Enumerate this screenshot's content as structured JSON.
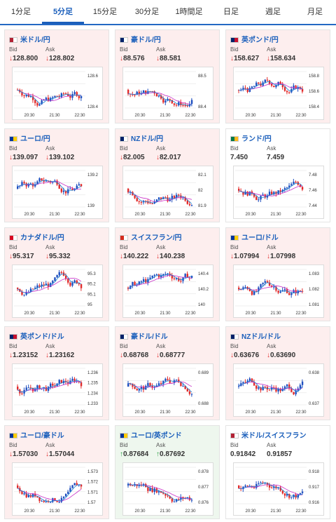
{
  "tabs": [
    "1分足",
    "5分足",
    "15分足",
    "30分足",
    "1時間足",
    "日足",
    "週足",
    "月足"
  ],
  "active_tab": 1,
  "labels": {
    "bid": "Bid",
    "ask": "Ask"
  },
  "colors": {
    "up": "#2aa043",
    "down": "#e22b2b",
    "neutral": "#333333",
    "card_down": "#fdeeee",
    "card_up": "#eef7ee",
    "card_neutral": "#ffffff",
    "ma": "#c830c8",
    "ma2": "#1a7fd0"
  },
  "pairs": [
    {
      "name": "米ドル/円",
      "bid": "128.800",
      "ask": "128.802",
      "dir": "down",
      "ticks": [
        "128.6",
        "128.4"
      ],
      "times": [
        "20:30",
        "21:30",
        "22:30"
      ]
    },
    {
      "name": "豪ドル/円",
      "bid": "88.576",
      "ask": "88.581",
      "dir": "down",
      "ticks": [
        "88.5",
        "88.4"
      ],
      "times": [
        "20:30",
        "21:30",
        "22:30"
      ]
    },
    {
      "name": "英ポンド/円",
      "bid": "158.627",
      "ask": "158.634",
      "dir": "down",
      "ticks": [
        "158.8",
        "158.6",
        "158.4"
      ],
      "times": [
        "20:30",
        "21:30",
        "22:30"
      ]
    },
    {
      "name": "ユーロ/円",
      "bid": "139.097",
      "ask": "139.102",
      "dir": "down",
      "ticks": [
        "139.2",
        "139"
      ],
      "times": [
        "20:30",
        "21:30",
        "22:30"
      ]
    },
    {
      "name": "NZドル/円",
      "bid": "82.005",
      "ask": "82.017",
      "dir": "down",
      "ticks": [
        "82.1",
        "82",
        "81.9"
      ],
      "times": [
        "20:30",
        "21:30",
        "22:30"
      ]
    },
    {
      "name": "ランド/円",
      "bid": "7.450",
      "ask": "7.459",
      "dir": "neutral",
      "ticks": [
        "7.48",
        "7.46",
        "7.44"
      ],
      "times": [
        "20:30",
        "21:30",
        "22:30"
      ]
    },
    {
      "name": "カナダドル/円",
      "bid": "95.317",
      "ask": "95.332",
      "dir": "down",
      "ticks": [
        "95.3",
        "95.2",
        "95.1",
        "95"
      ],
      "times": [
        "20:30",
        "21:30",
        "22:30"
      ]
    },
    {
      "name": "スイスフラン/円",
      "bid": "140.222",
      "ask": "140.238",
      "dir": "down",
      "ticks": [
        "140.4",
        "140.2",
        "140"
      ],
      "times": [
        "20:30",
        "21:30",
        "22:30"
      ]
    },
    {
      "name": "ユーロ/ドル",
      "bid": "1.07994",
      "ask": "1.07998",
      "dir": "down",
      "ticks": [
        "1.083",
        "1.082",
        "1.081"
      ],
      "times": [
        "20:30",
        "21:30",
        "22:30"
      ]
    },
    {
      "name": "英ポンド/ドル",
      "bid": "1.23152",
      "ask": "1.23162",
      "dir": "down",
      "ticks": [
        "1.236",
        "1.235",
        "1.234",
        "1.233"
      ],
      "times": [
        "20:30",
        "21:30",
        "22:30"
      ]
    },
    {
      "name": "豪ドル/ドル",
      "bid": "0.68768",
      "ask": "0.68777",
      "dir": "down",
      "ticks": [
        "0.689",
        "0.688"
      ],
      "times": [
        "20:30",
        "21:30",
        "22:30"
      ]
    },
    {
      "name": "NZドル/ドル",
      "bid": "0.63676",
      "ask": "0.63690",
      "dir": "down",
      "ticks": [
        "0.638",
        "0.637"
      ],
      "times": [
        "20:30",
        "21:30",
        "22:30"
      ]
    },
    {
      "name": "ユーロ/豪ドル",
      "bid": "1.57030",
      "ask": "1.57044",
      "dir": "down",
      "ticks": [
        "1.573",
        "1.572",
        "1.571",
        "1.57"
      ],
      "times": [
        "20:30",
        "21:30",
        "22:30"
      ]
    },
    {
      "name": "ユーロ/英ポンド",
      "bid": "0.87684",
      "ask": "0.87692",
      "dir": "up",
      "ticks": [
        "0.878",
        "0.877",
        "0.876"
      ],
      "times": [
        "20:30",
        "21:30",
        "22:30"
      ]
    },
    {
      "name": "米ドル/スイスフラン",
      "bid": "0.91842",
      "ask": "0.91857",
      "dir": "neutral",
      "ticks": [
        "0.918",
        "0.917",
        "0.916"
      ],
      "times": [
        "20:30",
        "21:30",
        "22:30"
      ]
    }
  ]
}
